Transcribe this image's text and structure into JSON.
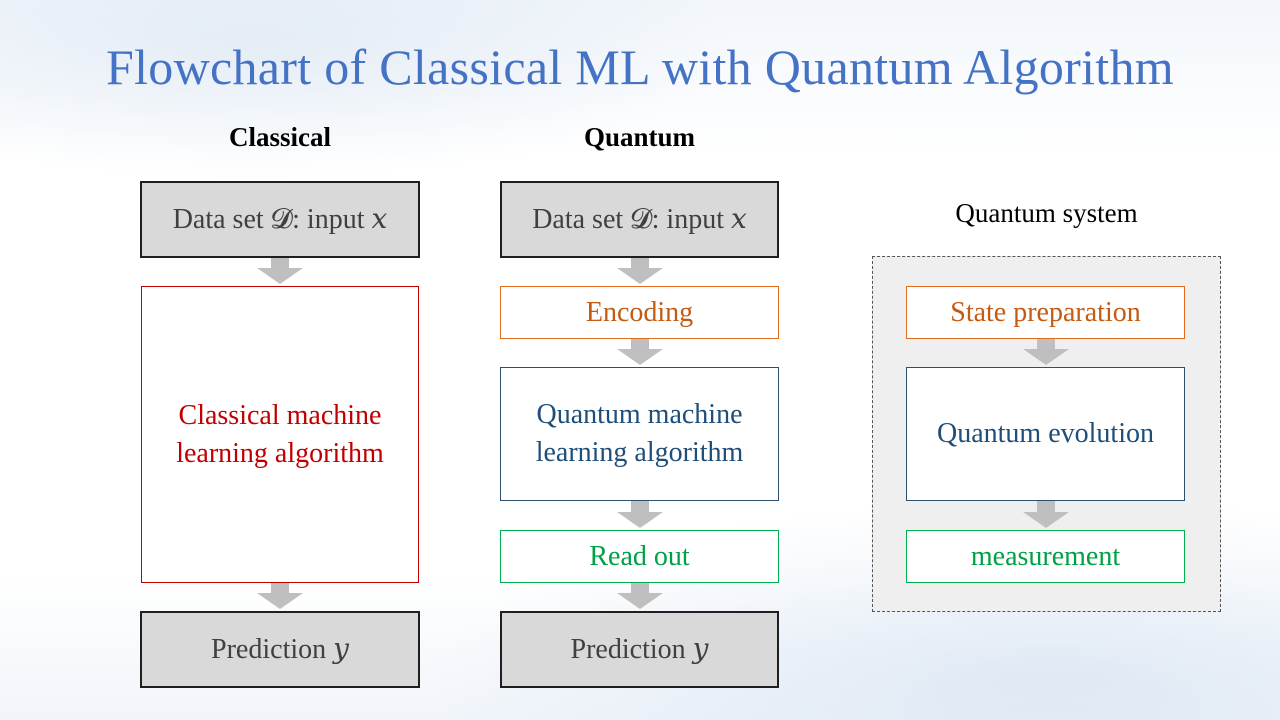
{
  "slide": {
    "title": "Flowchart of Classical ML with Quantum Algorithm"
  },
  "classical": {
    "heading": "Classical",
    "input_box": "Data set 𝓓: input 𝑥",
    "algorithm_box_line1": "Classical machine",
    "algorithm_box_line2": "learning algorithm",
    "output_box": "Prediction 𝑦"
  },
  "quantum": {
    "heading": "Quantum",
    "input_box": "Data set 𝓓: input 𝑥",
    "encoding_box": "Encoding",
    "algorithm_box_line1": "Quantum machine",
    "algorithm_box_line2": "learning algorithm",
    "readout_box": "Read out",
    "output_box": "Prediction 𝑦"
  },
  "quantum_system": {
    "heading": "Quantum system",
    "state_prep_box": "State preparation",
    "evolution_box": "Quantum evolution",
    "measurement_box": "measurement"
  },
  "colors": {
    "title_blue": "#4472c4",
    "gray_fill": "#d9d9d9",
    "arrow_gray": "#bfbfbf",
    "orange": "#c55a11",
    "red": "#c00000",
    "navy": "#1f4e79",
    "green": "#00b050"
  }
}
